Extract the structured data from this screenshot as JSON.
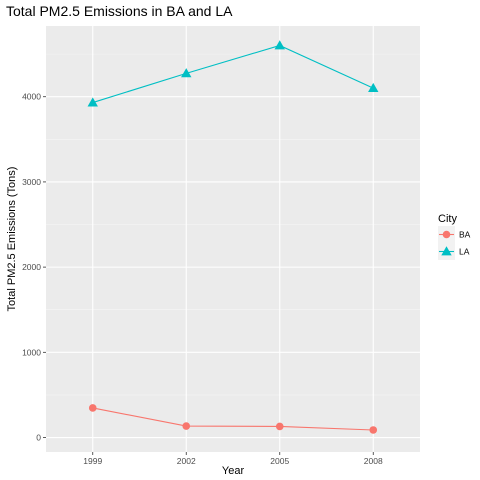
{
  "chart_data": {
    "type": "line",
    "title": "Total PM2.5 Emissions in BA and LA",
    "xlabel": "Year",
    "ylabel": "Total PM2.5 Emissions (Tons)",
    "x": [
      1999,
      2002,
      2005,
      2008
    ],
    "x_tick_labels": [
      "1999",
      "2002",
      "2005",
      "2008"
    ],
    "y_ticks": [
      0,
      1000,
      2000,
      3000,
      4000
    ],
    "y_tick_labels": [
      "0",
      "1000",
      "2000",
      "3000",
      "4000"
    ],
    "ylim": [
      -170,
      4830
    ],
    "xlim": [
      1997.5,
      2009.5
    ],
    "grid": true,
    "legend": {
      "title": "City",
      "position": "right"
    },
    "series": [
      {
        "name": "BA",
        "values": [
          346.8,
          134.3,
          130.4,
          88.3
        ],
        "color": "#F8766D",
        "marker": "circle"
      },
      {
        "name": "LA",
        "values": [
          3931.1,
          4274.0,
          4601.4,
          4101.3
        ],
        "color": "#00BFC4",
        "marker": "triangle"
      }
    ]
  }
}
